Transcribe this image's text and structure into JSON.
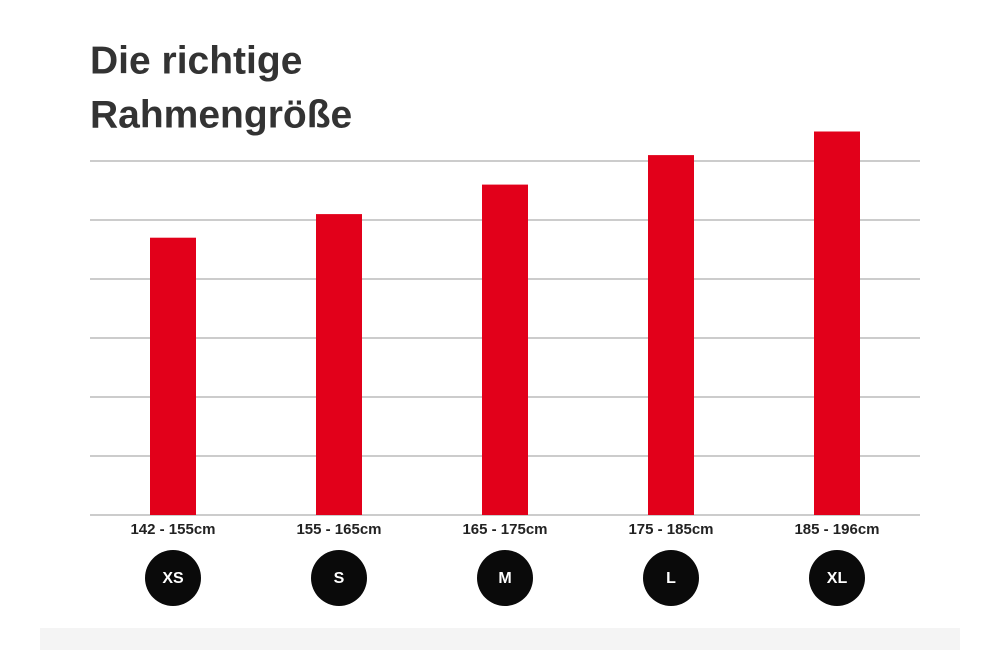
{
  "chart_data": {
    "type": "bar",
    "title": [
      "Die richtige",
      "Rahmengröße"
    ],
    "categories": [
      "142 - 155cm",
      "155 - 165cm",
      "165 - 175cm",
      "175 - 185cm",
      "185 - 196cm"
    ],
    "sizes": [
      "XS",
      "S",
      "M",
      "L",
      "XL"
    ],
    "values": [
      4.7,
      5.1,
      5.6,
      6.1,
      6.5
    ],
    "color": "#e2001a",
    "ylim": [
      0,
      6.5
    ],
    "yticks": [
      0,
      1,
      2,
      3,
      4,
      5,
      6
    ],
    "grid": true
  }
}
